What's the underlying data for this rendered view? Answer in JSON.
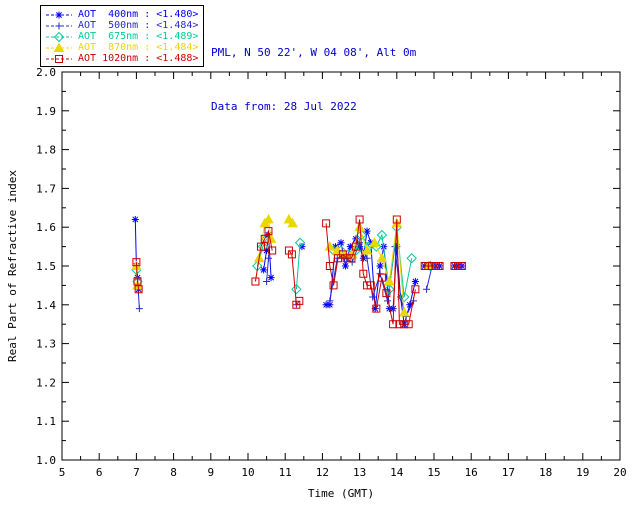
{
  "header": {
    "station": "PML, N 50 22', W 04 08', Alt 0m",
    "date_line": "Data from: 28 Jul 2022"
  },
  "legend": {
    "separator": " : "
  },
  "chart_data": {
    "type": "line",
    "title": "",
    "xlabel": "Time (GMT)",
    "ylabel": "Real Part of Refractive index",
    "xlim": [
      5,
      20
    ],
    "ylim": [
      1.0,
      2.0
    ],
    "grid": false,
    "legend_position": "top-left",
    "xtick_values": [
      5,
      6,
      7,
      8,
      9,
      10,
      11,
      12,
      13,
      14,
      15,
      16,
      17,
      18,
      19,
      20
    ],
    "xtick_labels": [
      "5",
      "6",
      "7",
      "8",
      "9",
      "10",
      "11",
      "12",
      "13",
      "14",
      "15",
      "16",
      "17",
      "18",
      "19",
      "20"
    ],
    "ytick_values": [
      1.0,
      1.1,
      1.2,
      1.3,
      1.4,
      1.5,
      1.6,
      1.7,
      1.8,
      1.9,
      2.0
    ],
    "ytick_labels": [
      "1.0",
      "1.1",
      "1.2",
      "1.3",
      "1.4",
      "1.5",
      "1.6",
      "1.7",
      "1.8",
      "1.9",
      "2.0"
    ],
    "gap_threshold": 0.24,
    "series": [
      {
        "name": "AOT  400nm",
        "mean": "<1.480>",
        "color": "#0000ff",
        "marker": "asterisk",
        "points": [
          [
            6.97,
            1.62
          ],
          [
            7.0,
            1.5
          ],
          [
            7.03,
            1.47
          ],
          [
            7.06,
            1.44
          ],
          [
            10.42,
            1.49
          ],
          [
            10.5,
            1.54
          ],
          [
            10.55,
            1.58
          ],
          [
            10.62,
            1.47
          ],
          [
            11.45,
            1.55
          ],
          [
            12.1,
            1.4
          ],
          [
            12.2,
            1.4
          ],
          [
            12.35,
            1.55
          ],
          [
            12.5,
            1.56
          ],
          [
            12.62,
            1.5
          ],
          [
            12.75,
            1.55
          ],
          [
            12.9,
            1.57
          ],
          [
            13.0,
            1.55
          ],
          [
            13.1,
            1.52
          ],
          [
            13.2,
            1.59
          ],
          [
            13.3,
            1.56
          ],
          [
            13.42,
            1.39
          ],
          [
            13.55,
            1.5
          ],
          [
            13.65,
            1.55
          ],
          [
            13.8,
            1.39
          ],
          [
            13.9,
            1.39
          ],
          [
            14.0,
            1.55
          ],
          [
            14.1,
            1.42
          ],
          [
            14.2,
            1.35
          ],
          [
            14.35,
            1.4
          ],
          [
            14.5,
            1.46
          ],
          [
            14.75,
            1.5
          ],
          [
            14.85,
            1.5
          ],
          [
            14.95,
            1.5
          ],
          [
            15.05,
            1.5
          ],
          [
            15.15,
            1.5
          ],
          [
            15.55,
            1.5
          ],
          [
            15.65,
            1.5
          ],
          [
            15.75,
            1.5
          ]
        ]
      },
      {
        "name": "AOT  500nm",
        "mean": "<1.484>",
        "color": "#2a2acc",
        "marker": "plus",
        "points": [
          [
            7.0,
            1.5
          ],
          [
            7.04,
            1.45
          ],
          [
            7.08,
            1.39
          ],
          [
            10.5,
            1.46
          ],
          [
            10.55,
            1.52
          ],
          [
            11.3,
            1.4
          ],
          [
            12.2,
            1.41
          ],
          [
            12.4,
            1.52
          ],
          [
            12.6,
            1.52
          ],
          [
            12.8,
            1.51
          ],
          [
            13.0,
            1.56
          ],
          [
            13.2,
            1.52
          ],
          [
            13.35,
            1.42
          ],
          [
            13.55,
            1.48
          ],
          [
            13.75,
            1.41
          ],
          [
            13.95,
            1.55
          ],
          [
            14.1,
            1.42
          ],
          [
            14.25,
            1.37
          ],
          [
            14.45,
            1.41
          ],
          [
            14.8,
            1.44
          ],
          [
            14.95,
            1.5
          ],
          [
            15.6,
            1.5
          ]
        ]
      },
      {
        "name": "AOT  675nm",
        "mean": "<1.489>",
        "color": "#00cc99",
        "marker": "diamond",
        "points": [
          [
            7.0,
            1.49
          ],
          [
            7.03,
            1.46
          ],
          [
            10.25,
            1.5
          ],
          [
            10.4,
            1.55
          ],
          [
            10.5,
            1.57
          ],
          [
            11.3,
            1.44
          ],
          [
            11.4,
            1.56
          ],
          [
            12.3,
            1.54
          ],
          [
            12.5,
            1.54
          ],
          [
            12.7,
            1.53
          ],
          [
            12.9,
            1.54
          ],
          [
            13.05,
            1.58
          ],
          [
            13.25,
            1.55
          ],
          [
            13.45,
            1.55
          ],
          [
            13.6,
            1.58
          ],
          [
            13.8,
            1.44
          ],
          [
            14.0,
            1.6
          ],
          [
            14.2,
            1.42
          ],
          [
            14.4,
            1.52
          ],
          [
            14.9,
            1.5
          ]
        ]
      },
      {
        "name": "AOT  870nm",
        "mean": "<1.484>",
        "color": "#e8d800",
        "marker": "triangle",
        "points": [
          [
            7.0,
            1.5
          ],
          [
            7.03,
            1.45
          ],
          [
            10.3,
            1.52
          ],
          [
            10.45,
            1.61
          ],
          [
            10.55,
            1.62
          ],
          [
            10.62,
            1.57
          ],
          [
            11.1,
            1.62
          ],
          [
            11.2,
            1.61
          ],
          [
            12.2,
            1.55
          ],
          [
            12.4,
            1.54
          ],
          [
            12.6,
            1.53
          ],
          [
            12.8,
            1.53
          ],
          [
            13.0,
            1.6
          ],
          [
            13.2,
            1.54
          ],
          [
            13.4,
            1.56
          ],
          [
            13.6,
            1.52
          ],
          [
            13.8,
            1.46
          ],
          [
            14.0,
            1.61
          ],
          [
            14.2,
            1.38
          ],
          [
            14.85,
            1.5
          ]
        ]
      },
      {
        "name": "AOT 1020nm",
        "mean": "<1.488>",
        "color": "#cc0000",
        "marker": "square",
        "points": [
          [
            7.0,
            1.51
          ],
          [
            7.03,
            1.46
          ],
          [
            7.06,
            1.44
          ],
          [
            10.2,
            1.46
          ],
          [
            10.35,
            1.55
          ],
          [
            10.45,
            1.57
          ],
          [
            10.55,
            1.59
          ],
          [
            10.65,
            1.54
          ],
          [
            11.1,
            1.54
          ],
          [
            11.18,
            1.53
          ],
          [
            11.3,
            1.4
          ],
          [
            11.38,
            1.41
          ],
          [
            12.1,
            1.61
          ],
          [
            12.2,
            1.5
          ],
          [
            12.3,
            1.45
          ],
          [
            12.42,
            1.52
          ],
          [
            12.55,
            1.53
          ],
          [
            12.65,
            1.52
          ],
          [
            12.78,
            1.52
          ],
          [
            12.9,
            1.55
          ],
          [
            13.0,
            1.62
          ],
          [
            13.1,
            1.48
          ],
          [
            13.2,
            1.45
          ],
          [
            13.3,
            1.45
          ],
          [
            13.45,
            1.39
          ],
          [
            13.6,
            1.47
          ],
          [
            13.72,
            1.43
          ],
          [
            13.9,
            1.35
          ],
          [
            14.0,
            1.62
          ],
          [
            14.07,
            1.35
          ],
          [
            14.2,
            1.35
          ],
          [
            14.32,
            1.35
          ],
          [
            14.5,
            1.44
          ],
          [
            14.75,
            1.5
          ],
          [
            14.85,
            1.5
          ],
          [
            14.95,
            1.5
          ],
          [
            15.05,
            1.5
          ],
          [
            15.15,
            1.5
          ],
          [
            15.55,
            1.5
          ],
          [
            15.65,
            1.5
          ],
          [
            15.75,
            1.5
          ]
        ]
      }
    ]
  }
}
